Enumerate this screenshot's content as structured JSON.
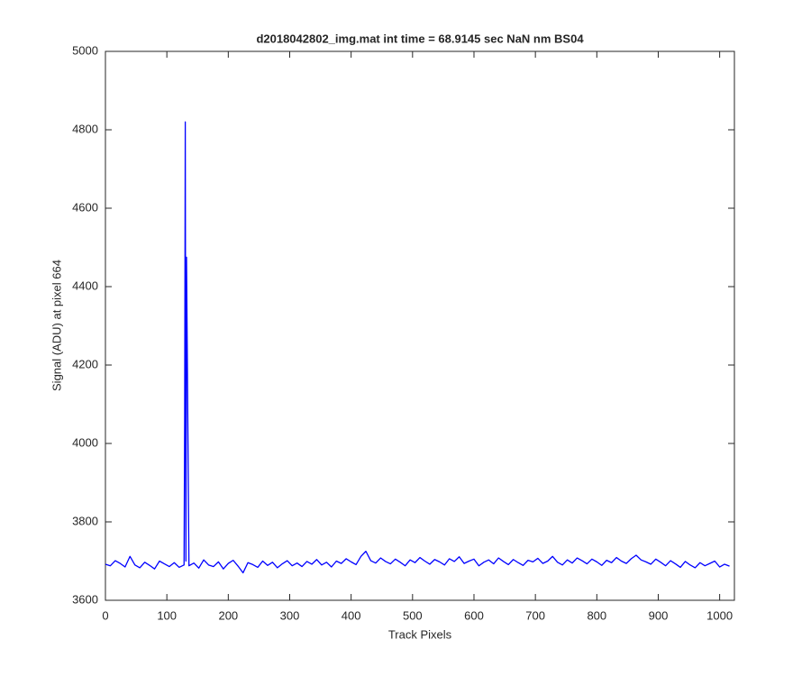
{
  "chart_data": {
    "type": "line",
    "title": "d2018042802_img.mat int time = 68.9145 sec  NaN nm BS04",
    "xlabel": "Track Pixels",
    "ylabel": "Signal (ADU) at pixel 664",
    "xlim": [
      0,
      1024
    ],
    "ylim": [
      3600,
      5000
    ],
    "xticks": [
      0,
      100,
      200,
      300,
      400,
      500,
      600,
      700,
      800,
      900,
      1000
    ],
    "yticks": [
      3600,
      3800,
      4000,
      4200,
      4400,
      4600,
      4800,
      5000
    ],
    "grid": false,
    "series": [
      {
        "name": "signal",
        "color": "#0000ff",
        "x": [
          0,
          8,
          16,
          24,
          32,
          40,
          48,
          56,
          64,
          72,
          80,
          88,
          96,
          104,
          112,
          120,
          128,
          129,
          130,
          131,
          132,
          136,
          144,
          152,
          160,
          168,
          176,
          184,
          192,
          200,
          208,
          216,
          224,
          232,
          240,
          248,
          256,
          264,
          272,
          280,
          288,
          296,
          304,
          312,
          320,
          328,
          336,
          344,
          352,
          360,
          368,
          376,
          384,
          392,
          400,
          408,
          416,
          424,
          432,
          440,
          448,
          456,
          464,
          472,
          480,
          488,
          496,
          504,
          512,
          520,
          528,
          536,
          544,
          552,
          560,
          568,
          576,
          584,
          592,
          600,
          608,
          616,
          624,
          632,
          640,
          648,
          656,
          664,
          672,
          680,
          688,
          696,
          704,
          712,
          720,
          728,
          736,
          744,
          752,
          760,
          768,
          776,
          784,
          792,
          800,
          808,
          816,
          824,
          832,
          840,
          848,
          856,
          864,
          872,
          880,
          888,
          896,
          904,
          912,
          920,
          928,
          936,
          944,
          952,
          960,
          968,
          976,
          984,
          992,
          1000,
          1008,
          1016
        ],
        "values": [
          3692,
          3688,
          3701,
          3694,
          3685,
          3712,
          3690,
          3683,
          3697,
          3689,
          3680,
          3700,
          3693,
          3686,
          3696,
          3684,
          3690,
          4060,
          4820,
          3700,
          4475,
          3688,
          3695,
          3682,
          3703,
          3690,
          3686,
          3698,
          3680,
          3694,
          3702,
          3687,
          3670,
          3696,
          3691,
          3684,
          3700,
          3689,
          3697,
          3683,
          3693,
          3701,
          3688,
          3695,
          3686,
          3699,
          3692,
          3704,
          3690,
          3697,
          3685,
          3700,
          3694,
          3706,
          3698,
          3691,
          3712,
          3725,
          3701,
          3695,
          3708,
          3699,
          3693,
          3705,
          3697,
          3688,
          3703,
          3696,
          3709,
          3700,
          3692,
          3704,
          3698,
          3690,
          3706,
          3699,
          3711,
          3694,
          3700,
          3705,
          3688,
          3697,
          3703,
          3693,
          3708,
          3699,
          3691,
          3704,
          3696,
          3689,
          3702,
          3698,
          3707,
          3694,
          3700,
          3712,
          3697,
          3690,
          3703,
          3695,
          3708,
          3701,
          3693,
          3705,
          3698,
          3689,
          3702,
          3696,
          3709,
          3700,
          3694,
          3706,
          3715,
          3703,
          3698,
          3692,
          3705,
          3697,
          3688,
          3701,
          3693,
          3684,
          3699,
          3690,
          3683,
          3696,
          3688,
          3694,
          3700,
          3685,
          3692,
          3687
        ]
      }
    ]
  }
}
